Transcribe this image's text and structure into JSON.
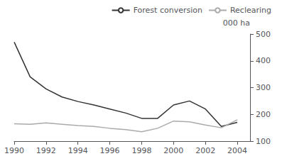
{
  "chart_data": {
    "type": "line",
    "x": [
      1990,
      1991,
      1992,
      1993,
      1994,
      1995,
      1996,
      1997,
      1998,
      1999,
      2000,
      2001,
      2002,
      2003,
      2004
    ],
    "series": [
      {
        "name": "Forest conversion",
        "color": "#333333",
        "values": [
          470,
          340,
          295,
          265,
          248,
          235,
          220,
          205,
          185,
          185,
          235,
          250,
          220,
          155,
          170
        ]
      },
      {
        "name": "Reclearing",
        "color": "#aaaaaa",
        "values": [
          165,
          163,
          168,
          163,
          158,
          155,
          148,
          143,
          135,
          148,
          175,
          172,
          160,
          150,
          180
        ]
      }
    ],
    "ylabel": "000 ha",
    "xlim": [
      1990,
      2004.8
    ],
    "xticks": [
      1990,
      1992,
      1994,
      1996,
      1998,
      2000,
      2002,
      2004
    ],
    "ylim": [
      100,
      500
    ],
    "yticks": [
      100,
      200,
      300,
      400,
      500
    ],
    "legend": "upper right",
    "grid": false
  }
}
